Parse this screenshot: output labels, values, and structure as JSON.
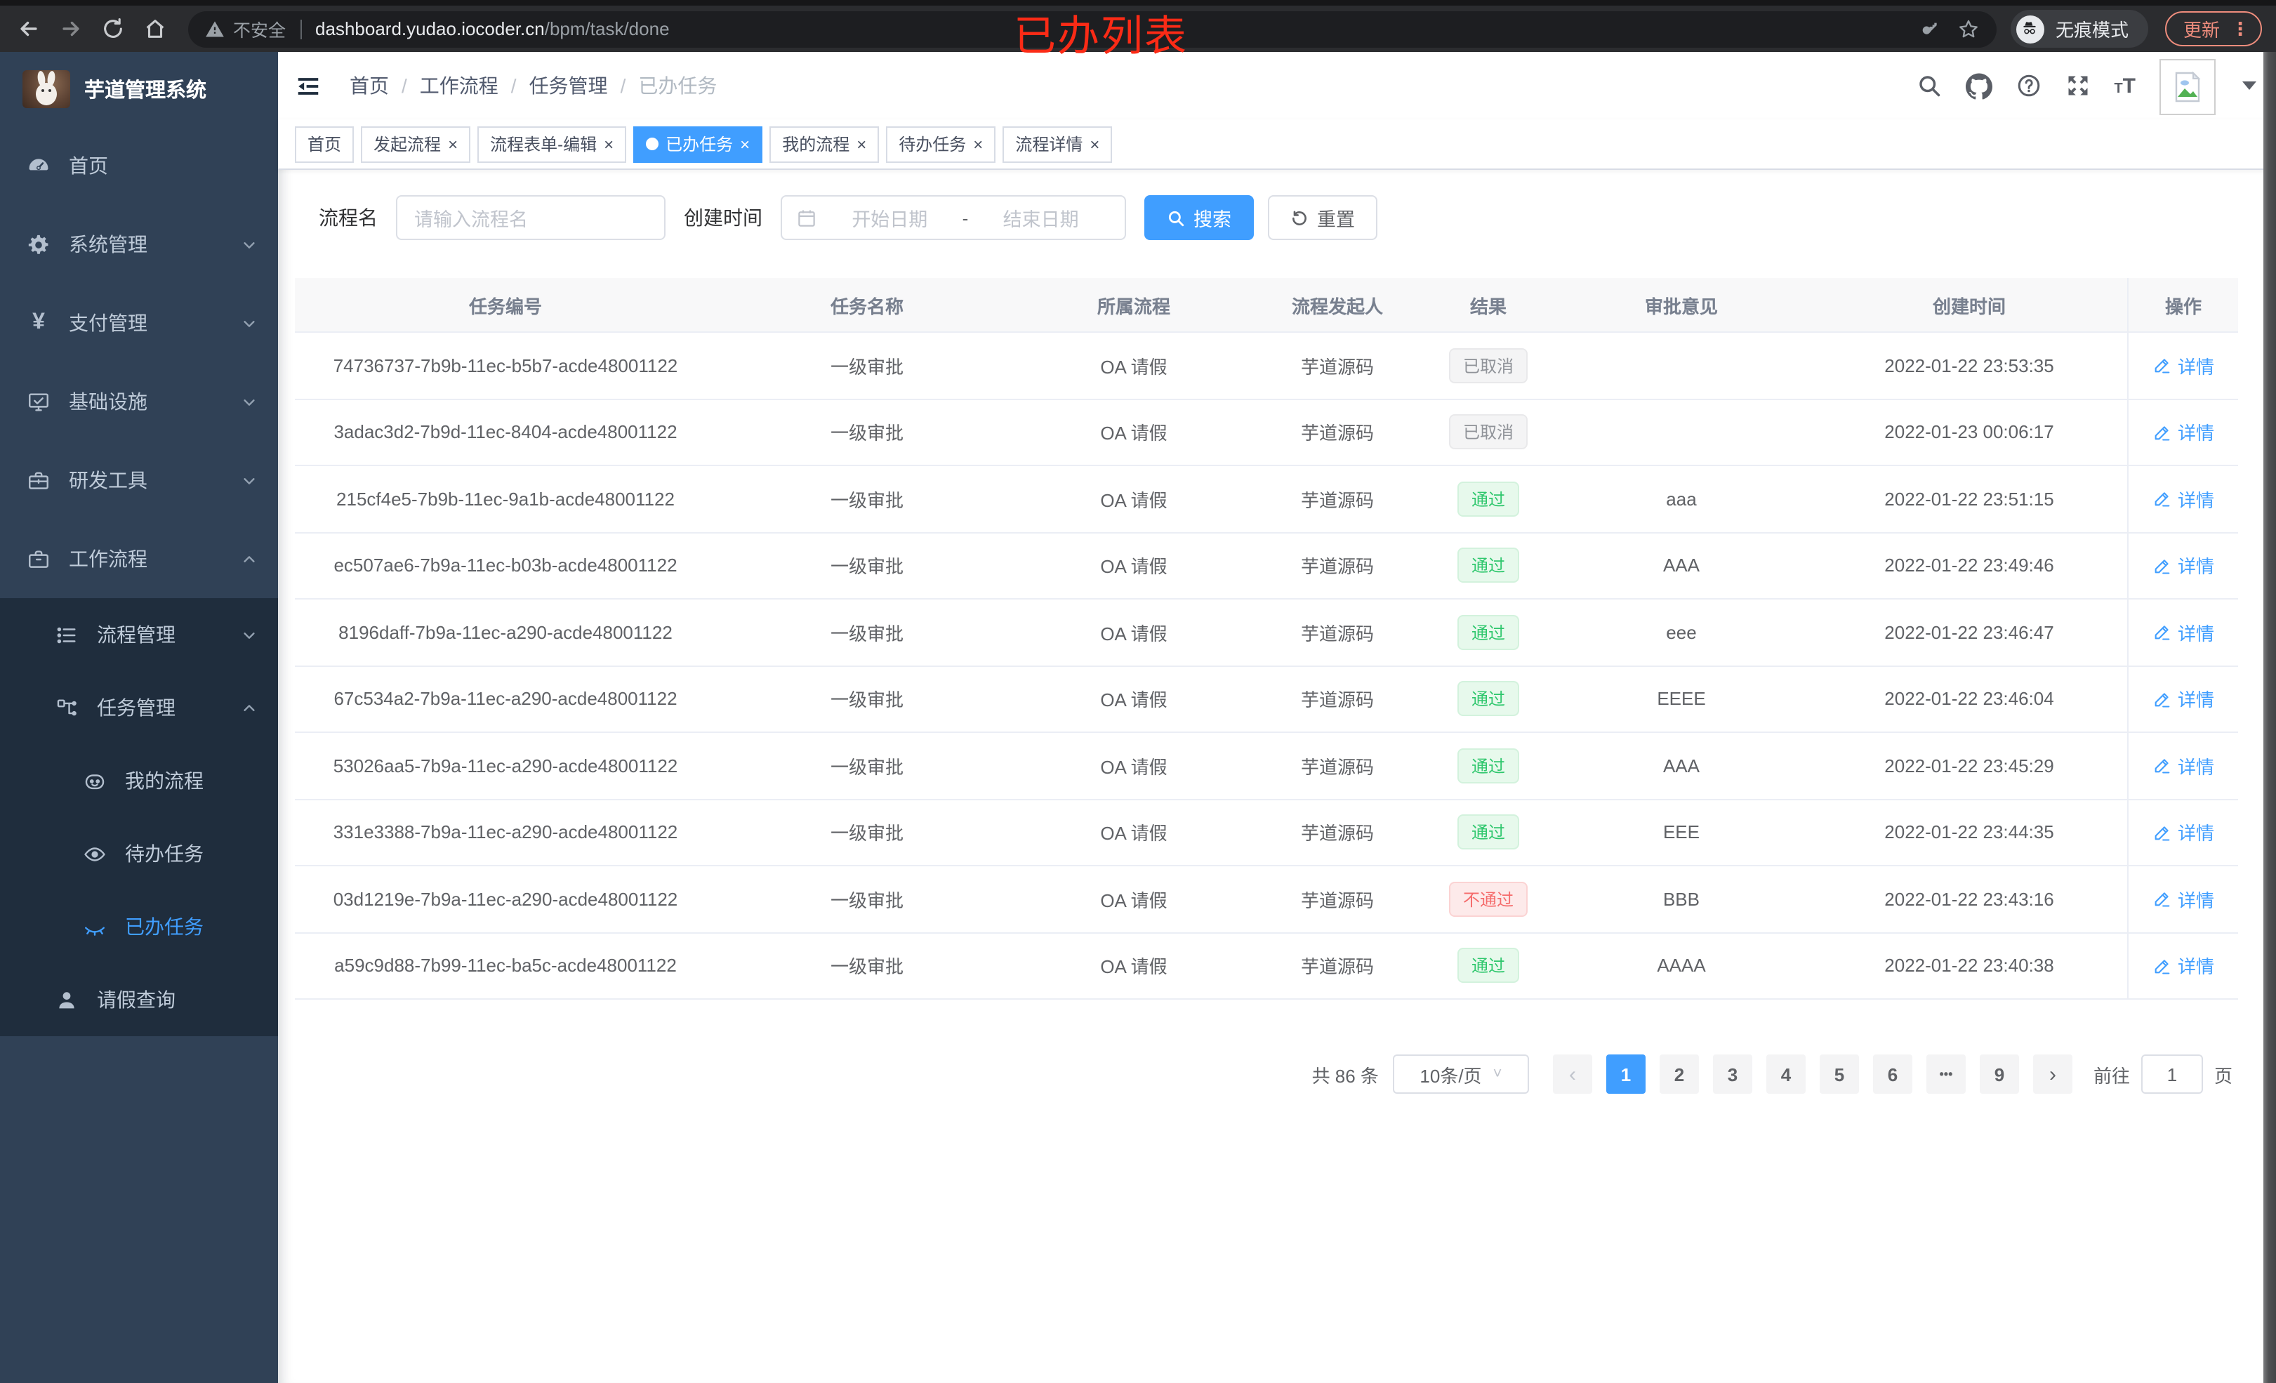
{
  "browser": {
    "overlay_title": "已办列表",
    "security_label": "不安全",
    "url_domain": "dashboard.yudao.iocoder.cn",
    "url_path": "/bpm/task/done",
    "incognito_label": "无痕模式",
    "update_label": "更新"
  },
  "sidebar": {
    "app_title": "芋道管理系统",
    "items": [
      {
        "label": "首页",
        "icon": "dashboard-icon",
        "level": 1,
        "chevron": "none",
        "active": false
      },
      {
        "label": "系统管理",
        "icon": "gear-icon",
        "level": 1,
        "chevron": "down",
        "active": false
      },
      {
        "label": "支付管理",
        "icon": "yen-icon",
        "level": 1,
        "chevron": "down",
        "active": false
      },
      {
        "label": "基础设施",
        "icon": "monitor-icon",
        "level": 1,
        "chevron": "down",
        "active": false
      },
      {
        "label": "研发工具",
        "icon": "toolbox-icon",
        "level": 1,
        "chevron": "down",
        "active": false
      },
      {
        "label": "工作流程",
        "icon": "briefcase-icon",
        "level": 1,
        "chevron": "up",
        "active": false
      },
      {
        "label": "流程管理",
        "icon": "list-tree-icon",
        "level": 2,
        "chevron": "down",
        "active": false
      },
      {
        "label": "任务管理",
        "icon": "flow-icon",
        "level": 2,
        "chevron": "up",
        "active": false
      },
      {
        "label": "我的流程",
        "icon": "face-icon",
        "level": 3,
        "chevron": "none",
        "active": false
      },
      {
        "label": "待办任务",
        "icon": "eye-open-icon",
        "level": 3,
        "chevron": "none",
        "active": false
      },
      {
        "label": "已办任务",
        "icon": "eye-closed-icon",
        "level": 3,
        "chevron": "none",
        "active": true
      },
      {
        "label": "请假查询",
        "icon": "user-icon",
        "level": 2,
        "chevron": "none",
        "active": false
      }
    ]
  },
  "header": {
    "breadcrumb": [
      "首页",
      "工作流程",
      "任务管理",
      "已办任务"
    ]
  },
  "tabs": [
    {
      "label": "首页",
      "closable": false,
      "active": false
    },
    {
      "label": "发起流程",
      "closable": true,
      "active": false
    },
    {
      "label": "流程表单-编辑",
      "closable": true,
      "active": false
    },
    {
      "label": "已办任务",
      "closable": true,
      "active": true
    },
    {
      "label": "我的流程",
      "closable": true,
      "active": false
    },
    {
      "label": "待办任务",
      "closable": true,
      "active": false
    },
    {
      "label": "流程详情",
      "closable": true,
      "active": false
    }
  ],
  "filters": {
    "name_label": "流程名",
    "name_placeholder": "请输入流程名",
    "time_label": "创建时间",
    "start_placeholder": "开始日期",
    "range_separator": "-",
    "end_placeholder": "结束日期",
    "search_label": "搜索",
    "reset_label": "重置"
  },
  "table": {
    "columns": [
      "任务编号",
      "任务名称",
      "所属流程",
      "流程发起人",
      "结果",
      "审批意见",
      "创建时间",
      "操作"
    ],
    "action_label": "详情",
    "rows": [
      {
        "id": "74736737-7b9b-11ec-b5b7-acde48001122",
        "name": "一级审批",
        "process": "OA 请假",
        "starter": "芋道源码",
        "result": {
          "label": "已取消",
          "type": "info"
        },
        "comment": "",
        "created": "2022-01-22 23:53:35"
      },
      {
        "id": "3adac3d2-7b9d-11ec-8404-acde48001122",
        "name": "一级审批",
        "process": "OA 请假",
        "starter": "芋道源码",
        "result": {
          "label": "已取消",
          "type": "info"
        },
        "comment": "",
        "created": "2022-01-23 00:06:17"
      },
      {
        "id": "215cf4e5-7b9b-11ec-9a1b-acde48001122",
        "name": "一级审批",
        "process": "OA 请假",
        "starter": "芋道源码",
        "result": {
          "label": "通过",
          "type": "success"
        },
        "comment": "aaa",
        "created": "2022-01-22 23:51:15"
      },
      {
        "id": "ec507ae6-7b9a-11ec-b03b-acde48001122",
        "name": "一级审批",
        "process": "OA 请假",
        "starter": "芋道源码",
        "result": {
          "label": "通过",
          "type": "success"
        },
        "comment": "AAA",
        "created": "2022-01-22 23:49:46"
      },
      {
        "id": "8196daff-7b9a-11ec-a290-acde48001122",
        "name": "一级审批",
        "process": "OA 请假",
        "starter": "芋道源码",
        "result": {
          "label": "通过",
          "type": "success"
        },
        "comment": "eee",
        "created": "2022-01-22 23:46:47"
      },
      {
        "id": "67c534a2-7b9a-11ec-a290-acde48001122",
        "name": "一级审批",
        "process": "OA 请假",
        "starter": "芋道源码",
        "result": {
          "label": "通过",
          "type": "success"
        },
        "comment": "EEEE",
        "created": "2022-01-22 23:46:04"
      },
      {
        "id": "53026aa5-7b9a-11ec-a290-acde48001122",
        "name": "一级审批",
        "process": "OA 请假",
        "starter": "芋道源码",
        "result": {
          "label": "通过",
          "type": "success"
        },
        "comment": "AAA",
        "created": "2022-01-22 23:45:29"
      },
      {
        "id": "331e3388-7b9a-11ec-a290-acde48001122",
        "name": "一级审批",
        "process": "OA 请假",
        "starter": "芋道源码",
        "result": {
          "label": "通过",
          "type": "success"
        },
        "comment": "EEE",
        "created": "2022-01-22 23:44:35"
      },
      {
        "id": "03d1219e-7b9a-11ec-a290-acde48001122",
        "name": "一级审批",
        "process": "OA 请假",
        "starter": "芋道源码",
        "result": {
          "label": "不通过",
          "type": "danger"
        },
        "comment": "BBB",
        "created": "2022-01-22 23:43:16"
      },
      {
        "id": "a59c9d88-7b99-11ec-ba5c-acde48001122",
        "name": "一级审批",
        "process": "OA 请假",
        "starter": "芋道源码",
        "result": {
          "label": "通过",
          "type": "success"
        },
        "comment": "AAAA",
        "created": "2022-01-22 23:40:38"
      }
    ]
  },
  "pagination": {
    "total_label": "共 86 条",
    "page_size_label": "10条/页",
    "prev_glyph": "‹",
    "next_glyph": "›",
    "pages": [
      "1",
      "2",
      "3",
      "4",
      "5",
      "6",
      "•••",
      "9"
    ],
    "active_page": "1",
    "goto_label": "前往",
    "goto_value": "1",
    "goto_unit": "页"
  }
}
